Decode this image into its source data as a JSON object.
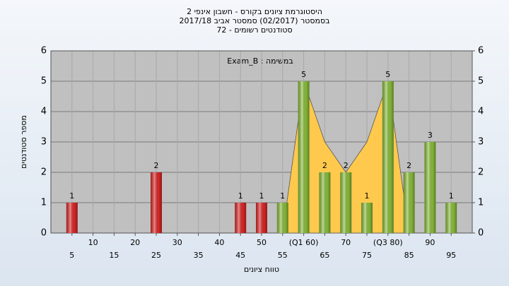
{
  "chart_data": {
    "type": "bar",
    "title": [
      "היסטוגרמת ציונים בקורס - חשבון אינפי 2",
      "בסמסטר  (02/2017)  סמסטר אביב 2017/18",
      "סטודנטים רשומים - 72"
    ],
    "annotation": "Exam_B : במשימה",
    "x_label": "טווח ציונים",
    "y_label": "מספר סטודנטים",
    "x": [
      5,
      10,
      15,
      20,
      25,
      30,
      35,
      40,
      45,
      50,
      55,
      60,
      65,
      70,
      75,
      80,
      85,
      90,
      95
    ],
    "values": [
      1,
      0,
      0,
      0,
      2,
      0,
      0,
      0,
      1,
      1,
      1,
      5,
      2,
      2,
      1,
      5,
      2,
      3,
      1
    ],
    "colors": [
      "#e02828",
      "#e02828",
      "#e02828",
      "#e02828",
      "#e02828",
      "#e02828",
      "#e02828",
      "#e02828",
      "#e02828",
      "#e02828",
      "#8cc03c",
      "#8cc03c",
      "#8cc03c",
      "#8cc03c",
      "#8cc03c",
      "#8cc03c",
      "#8cc03c",
      "#8cc03c",
      "#8cc03c"
    ],
    "area": {
      "color": "#ffc94d",
      "values": [
        null,
        null,
        null,
        null,
        null,
        null,
        null,
        null,
        null,
        null,
        0,
        5,
        3,
        2,
        3,
        5,
        0,
        null,
        null
      ]
    },
    "xlim": [
      0,
      100
    ],
    "xticks": [
      5,
      10,
      15,
      20,
      25,
      30,
      35,
      40,
      45,
      50,
      55,
      {
        "value": 60,
        "label": "(Q1 60)"
      },
      65,
      70,
      75,
      {
        "value": 80,
        "label": "(Q3 80)"
      },
      85,
      90,
      95
    ],
    "ylim": [
      0,
      6
    ],
    "yticks": [
      0,
      1,
      2,
      3,
      4,
      5,
      6
    ],
    "y2lim": [
      0,
      6
    ],
    "y2ticks": [
      0,
      1,
      2,
      3,
      4,
      5,
      6
    ],
    "grid": true
  }
}
